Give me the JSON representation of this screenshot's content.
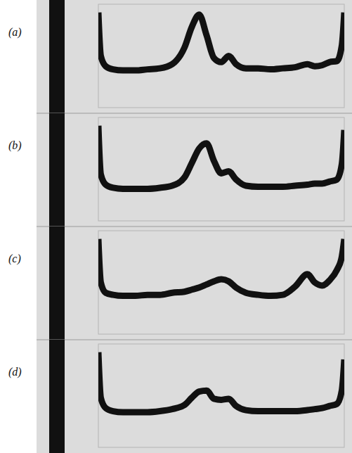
{
  "chart_data": [
    {
      "type": "line",
      "title": "(a)",
      "color": "#111111",
      "tick_labels": false,
      "xlim": [
        0,
        100
      ],
      "ylim": [
        0,
        100
      ],
      "x": [
        0,
        1,
        3,
        6,
        10,
        15,
        20,
        25,
        30,
        35,
        38,
        41,
        44,
        47,
        50,
        53,
        56,
        60,
        65,
        70,
        75,
        80,
        85,
        88,
        91,
        94,
        97,
        99,
        100
      ],
      "values": [
        92,
        50,
        40,
        37,
        36,
        36,
        37,
        38,
        42,
        58,
        78,
        90,
        70,
        48,
        44,
        50,
        42,
        38,
        38,
        37,
        38,
        39,
        42,
        40,
        41,
        44,
        45,
        60,
        92
      ]
    },
    {
      "type": "line",
      "title": "(b)",
      "color": "#111111",
      "tick_labels": false,
      "xlim": [
        0,
        100
      ],
      "ylim": [
        0,
        100
      ],
      "x": [
        0,
        1,
        3,
        6,
        10,
        15,
        20,
        25,
        30,
        35,
        38,
        41,
        44,
        47,
        50,
        53,
        56,
        60,
        65,
        70,
        75,
        80,
        85,
        88,
        91,
        94,
        97,
        99,
        100
      ],
      "values": [
        92,
        45,
        35,
        32,
        31,
        31,
        31,
        32,
        34,
        42,
        56,
        70,
        75,
        58,
        46,
        48,
        40,
        34,
        33,
        33,
        33,
        34,
        35,
        36,
        36,
        38,
        40,
        55,
        88
      ]
    },
    {
      "type": "line",
      "title": "(c)",
      "color": "#111111",
      "tick_labels": false,
      "xlim": [
        0,
        100
      ],
      "ylim": [
        0,
        100
      ],
      "x": [
        0,
        1,
        3,
        6,
        10,
        15,
        20,
        25,
        30,
        35,
        38,
        41,
        44,
        47,
        50,
        53,
        56,
        60,
        65,
        70,
        75,
        80,
        85,
        88,
        91,
        94,
        97,
        99,
        100
      ],
      "values": [
        92,
        50,
        40,
        38,
        37,
        37,
        38,
        38,
        40,
        41,
        43,
        45,
        48,
        51,
        53,
        51,
        45,
        40,
        38,
        37,
        38,
        46,
        58,
        50,
        47,
        52,
        62,
        75,
        92
      ]
    },
    {
      "type": "line",
      "title": "(d)",
      "color": "#111111",
      "tick_labels": false,
      "xlim": [
        0,
        100
      ],
      "ylim": [
        0,
        100
      ],
      "x": [
        0,
        1,
        3,
        6,
        10,
        15,
        20,
        25,
        30,
        35,
        38,
        41,
        44,
        47,
        50,
        53,
        56,
        60,
        65,
        70,
        75,
        80,
        85,
        88,
        91,
        94,
        97,
        99,
        100
      ],
      "values": [
        92,
        48,
        38,
        35,
        34,
        34,
        34,
        35,
        37,
        41,
        48,
        54,
        55,
        47,
        46,
        47,
        40,
        36,
        35,
        35,
        35,
        35,
        36,
        37,
        38,
        40,
        42,
        55,
        85
      ]
    }
  ]
}
